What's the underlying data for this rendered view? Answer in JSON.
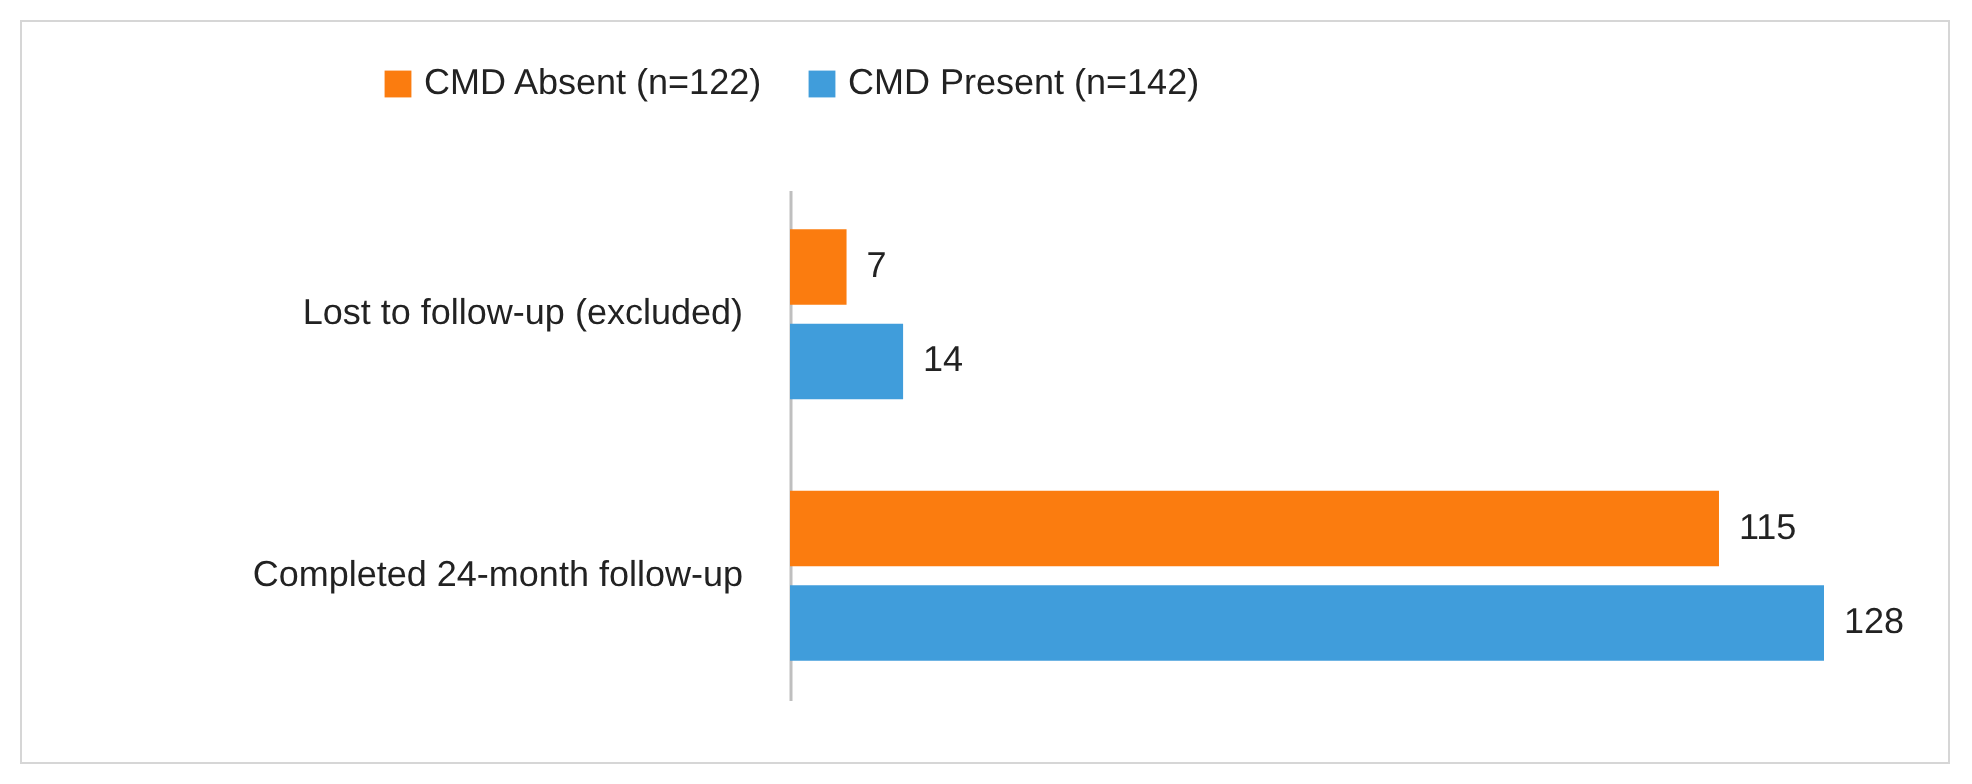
{
  "chart_data": {
    "type": "bar",
    "orientation": "horizontal",
    "categories": [
      "Lost to follow-up (excluded)",
      "Completed 24-month follow-up"
    ],
    "series": [
      {
        "name": "CMD Absent (n=122)",
        "color": "#fb7c0f",
        "values": [
          7,
          115
        ]
      },
      {
        "name": "CMD Present (n=142)",
        "color": "#409ddb",
        "values": [
          14,
          128
        ]
      }
    ],
    "data_labels": true,
    "legend": "top",
    "grid": false
  }
}
